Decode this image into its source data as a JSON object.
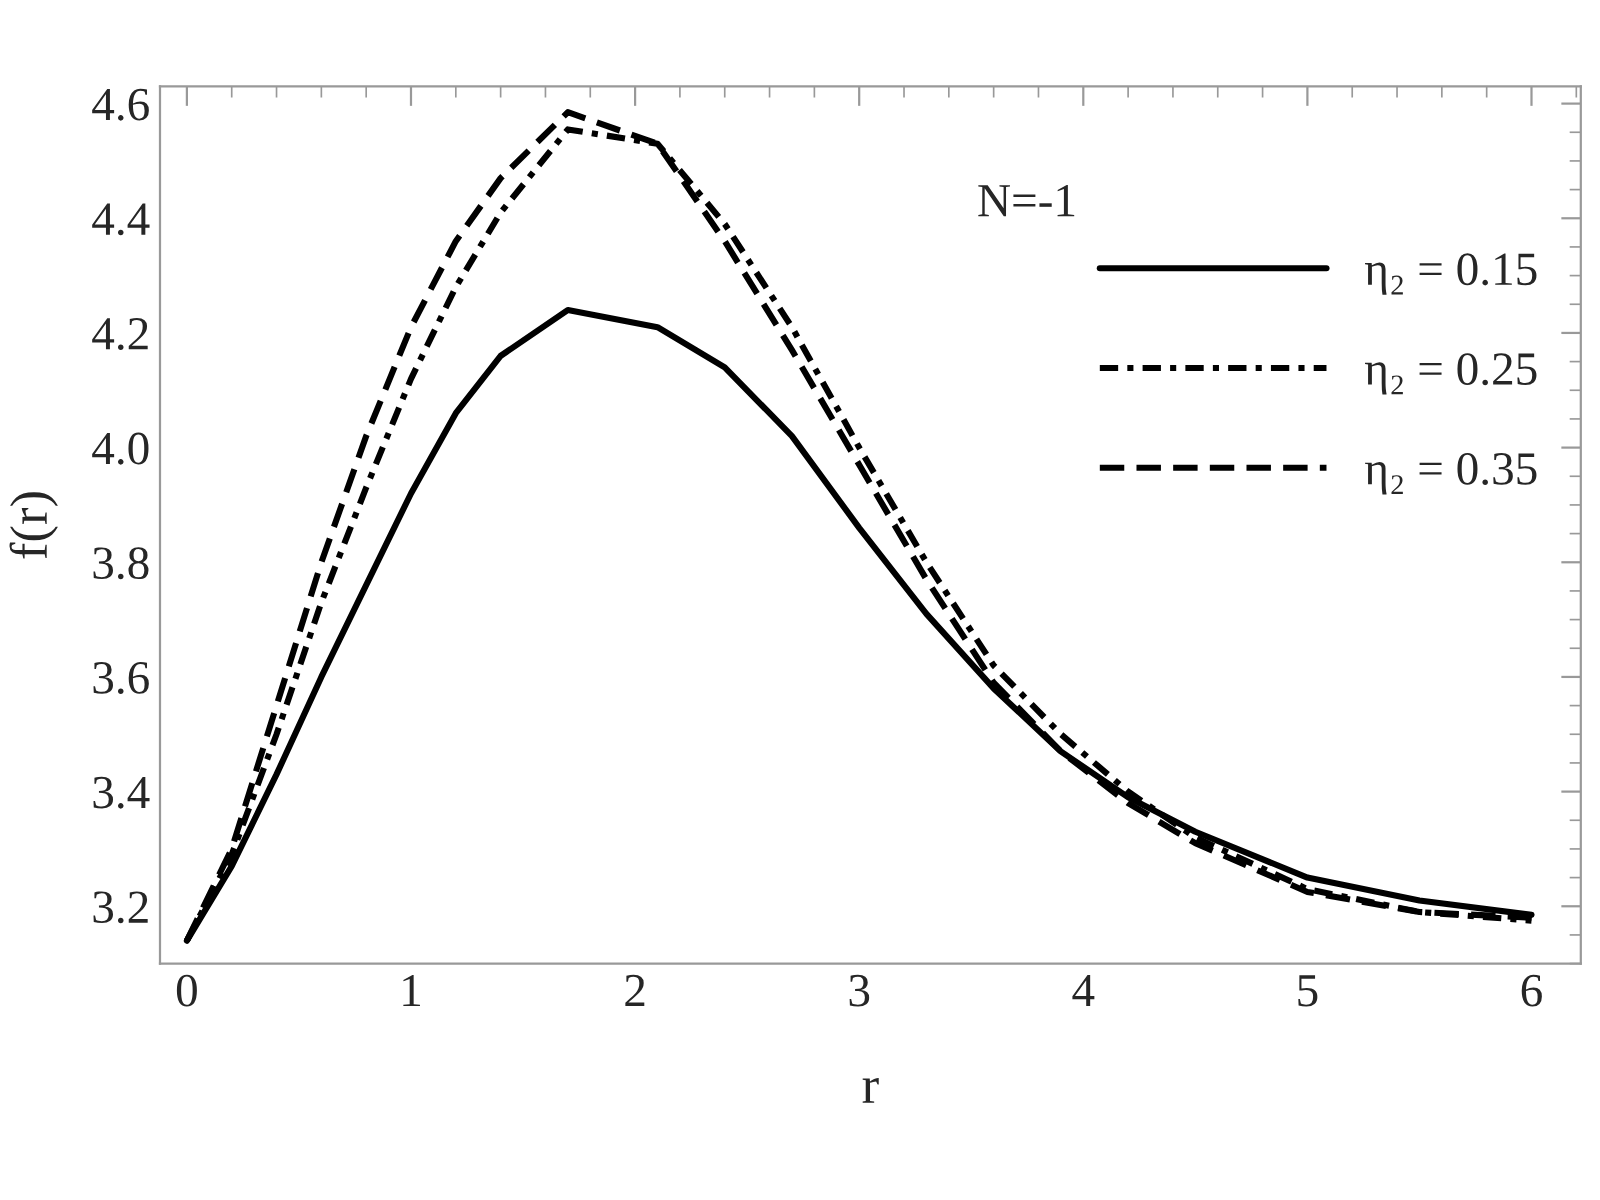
{
  "chart_data": {
    "type": "line",
    "xlabel": "r",
    "ylabel": "f(r)",
    "x": [
      0,
      0.2,
      0.4,
      0.6,
      0.8,
      1.0,
      1.2,
      1.4,
      1.7,
      2.1,
      2.4,
      2.7,
      3.0,
      3.3,
      3.6,
      3.9,
      4.2,
      4.5,
      5,
      5.5,
      6
    ],
    "series": [
      {
        "name": "η₂ = 0.15",
        "color": "#000000",
        "line_style": "solid",
        "values": [
          3.14,
          3.27,
          3.43,
          3.6,
          3.76,
          3.92,
          4.06,
          4.16,
          4.24,
          4.21,
          4.14,
          4.02,
          3.86,
          3.71,
          3.58,
          3.47,
          3.39,
          3.33,
          3.25,
          3.21,
          3.185
        ]
      },
      {
        "name": "η₂ = 0.25",
        "color": "#000000",
        "line_style": "dashdot",
        "values": [
          3.14,
          3.29,
          3.5,
          3.73,
          3.93,
          4.12,
          4.28,
          4.41,
          4.555,
          4.53,
          4.39,
          4.21,
          4.0,
          3.8,
          3.62,
          3.5,
          3.4,
          3.32,
          3.23,
          3.19,
          3.175
        ]
      },
      {
        "name": "η₂ = 0.35",
        "color": "#000000",
        "line_style": "dashed",
        "values": [
          3.14,
          3.3,
          3.55,
          3.8,
          4.02,
          4.21,
          4.36,
          4.47,
          4.585,
          4.53,
          4.36,
          4.17,
          3.97,
          3.77,
          3.59,
          3.47,
          3.38,
          3.31,
          3.225,
          3.19,
          3.18
        ]
      }
    ],
    "xlim": [
      -0.12,
      6.22
    ],
    "ylim": [
      3.1,
      4.63
    ],
    "xticks": [
      0,
      1,
      2,
      3,
      4,
      5,
      6
    ],
    "yticks": [
      3.2,
      3.4,
      3.6,
      3.8,
      {
        "value": 4.0,
        "label": "4.0"
      },
      4.2,
      4.4,
      4.6
    ],
    "annotations": [
      "N=-1"
    ],
    "grid": false,
    "legend": "top right"
  }
}
